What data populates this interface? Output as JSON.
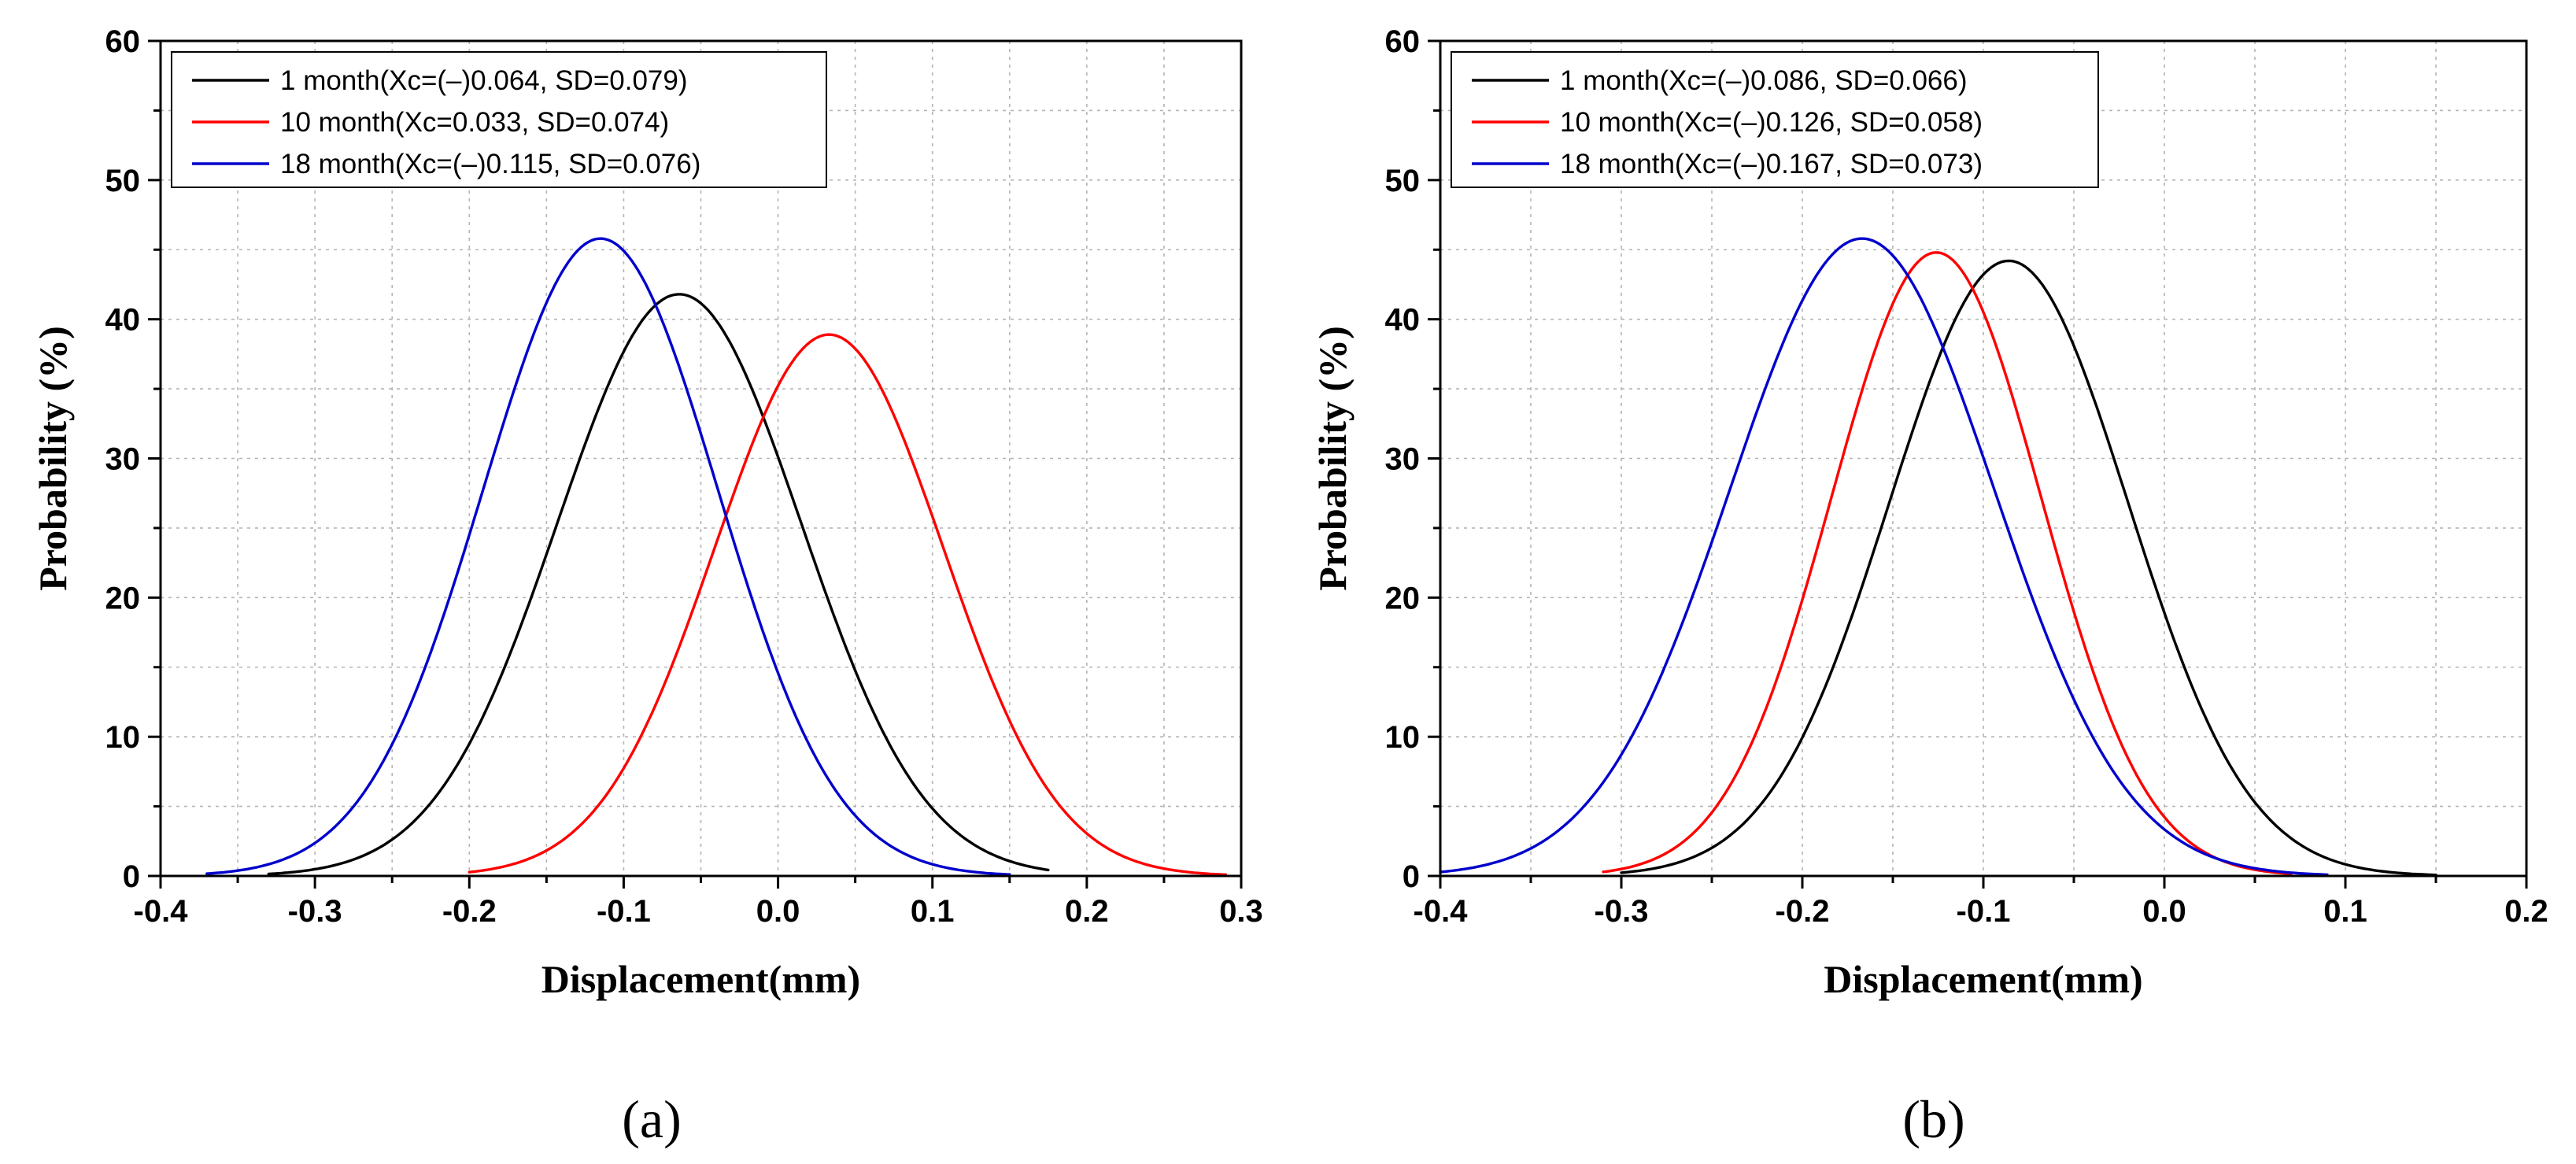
{
  "chart_data": [
    {
      "type": "line",
      "panel_label": "(a)",
      "xlabel": "Displacement(mm)",
      "ylabel": "Probability (%)",
      "xlim": [
        -0.4,
        0.3
      ],
      "ylim": [
        0,
        60
      ],
      "x_ticks": [
        "-0.4",
        "-0.3",
        "-0.2",
        "-0.1",
        "0.0",
        "0.1",
        "0.2",
        "0.3"
      ],
      "y_ticks": [
        "0",
        "10",
        "20",
        "30",
        "40",
        "50",
        "60"
      ],
      "grid": true,
      "legend_position": "top-left",
      "series": [
        {
          "name": "1 month(Xc=(–)0.064, SD=0.079)",
          "color": "#000000",
          "mean": -0.064,
          "sd": 0.079,
          "peak": 41.8,
          "x_range": [
            -0.33,
            0.175
          ]
        },
        {
          "name": "10 month(Xc=0.033, SD=0.074)",
          "color": "#ff0000",
          "mean": 0.033,
          "sd": 0.074,
          "peak": 38.9,
          "x_range": [
            -0.2,
            0.29
          ]
        },
        {
          "name": "18 month(Xc=(–)0.115, SD=0.076)",
          "color": "#0000cc",
          "mean": -0.115,
          "sd": 0.076,
          "peak": 45.8,
          "x_range": [
            -0.37,
            0.15
          ]
        }
      ]
    },
    {
      "type": "line",
      "panel_label": "(b)",
      "xlabel": "Displacement(mm)",
      "ylabel": "Probability (%)",
      "xlim": [
        -0.4,
        0.2
      ],
      "ylim": [
        0,
        60
      ],
      "x_ticks": [
        "-0.4",
        "-0.3",
        "-0.2",
        "-0.1",
        "0.0",
        "0.1",
        "0.2"
      ],
      "y_ticks": [
        "0",
        "10",
        "20",
        "30",
        "40",
        "50",
        "60"
      ],
      "grid": true,
      "legend_position": "top-left",
      "series": [
        {
          "name": "1 month(Xc=(–)0.086, SD=0.066)",
          "color": "#000000",
          "mean": -0.086,
          "sd": 0.066,
          "peak": 44.2,
          "x_range": [
            -0.3,
            0.15
          ]
        },
        {
          "name": "10 month(Xc=(–)0.126, SD=0.058)",
          "color": "#ff0000",
          "mean": -0.126,
          "sd": 0.058,
          "peak": 44.8,
          "x_range": [
            -0.31,
            0.07
          ]
        },
        {
          "name": "18 month(Xc=(–)0.167, SD=0.073)",
          "color": "#0000cc",
          "mean": -0.167,
          "sd": 0.073,
          "peak": 45.8,
          "x_range": [
            -0.4,
            0.09
          ]
        }
      ]
    }
  ]
}
